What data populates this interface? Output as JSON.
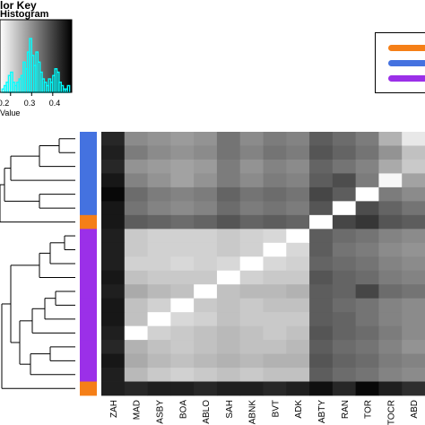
{
  "color_key": {
    "title": "lor Key",
    "subtitle": "Histogram",
    "xlabel": "Value",
    "ticks": [
      "0.2",
      "0.3",
      "0.4"
    ]
  },
  "colors": {
    "orange": "#f57f17",
    "blue": "#4472e0",
    "purple": "#9b30e8",
    "histogram": "#00ffff"
  },
  "chart_data": {
    "type": "heatmap",
    "title": "",
    "columns": [
      "ZAH",
      "MAD",
      "ASBY",
      "BOA",
      "ABLO",
      "SAH",
      "ABNK",
      "BVT",
      "ADK",
      "ABTY",
      "RAN",
      "TOR",
      "TOCR",
      "ABD"
    ],
    "row_groups": [
      "blue",
      "blue",
      "blue",
      "blue",
      "blue",
      "blue",
      "orange",
      "purple",
      "purple",
      "purple",
      "purple",
      "purple",
      "purple",
      "purple",
      "purple",
      "purple",
      "purple",
      "purple",
      "orange"
    ],
    "value_range": [
      0.15,
      0.48
    ],
    "values": [
      [
        0.2,
        0.33,
        0.34,
        0.35,
        0.34,
        0.3,
        0.33,
        0.31,
        0.32,
        0.27,
        0.29,
        0.31,
        0.38,
        0.45
      ],
      [
        0.19,
        0.31,
        0.33,
        0.34,
        0.33,
        0.3,
        0.32,
        0.3,
        0.31,
        0.26,
        0.28,
        0.3,
        0.34,
        0.4
      ],
      [
        0.2,
        0.34,
        0.35,
        0.36,
        0.35,
        0.31,
        0.34,
        0.32,
        0.33,
        0.28,
        0.3,
        0.32,
        0.37,
        0.41
      ],
      [
        0.18,
        0.32,
        0.34,
        0.36,
        0.34,
        0.31,
        0.33,
        0.31,
        0.32,
        0.27,
        0.25,
        0.31,
        0.47,
        0.36
      ],
      [
        0.16,
        0.29,
        0.31,
        0.32,
        0.31,
        0.28,
        0.3,
        0.29,
        0.3,
        0.24,
        0.27,
        0.48,
        0.31,
        0.33
      ],
      [
        0.18,
        0.3,
        0.32,
        0.33,
        0.32,
        0.29,
        0.31,
        0.3,
        0.31,
        0.26,
        0.48,
        0.25,
        0.28,
        0.3
      ],
      [
        0.18,
        0.27,
        0.28,
        0.29,
        0.28,
        0.26,
        0.28,
        0.27,
        0.28,
        0.48,
        0.24,
        0.22,
        0.26,
        0.27
      ],
      [
        0.19,
        0.41,
        0.42,
        0.42,
        0.42,
        0.41,
        0.42,
        0.43,
        0.48,
        0.27,
        0.29,
        0.3,
        0.32,
        0.33
      ],
      [
        0.19,
        0.41,
        0.42,
        0.42,
        0.42,
        0.41,
        0.42,
        0.48,
        0.43,
        0.27,
        0.3,
        0.31,
        0.33,
        0.34
      ],
      [
        0.19,
        0.42,
        0.42,
        0.43,
        0.42,
        0.43,
        0.48,
        0.43,
        0.42,
        0.28,
        0.29,
        0.3,
        0.32,
        0.33
      ],
      [
        0.18,
        0.4,
        0.41,
        0.41,
        0.41,
        0.48,
        0.42,
        0.41,
        0.41,
        0.26,
        0.28,
        0.29,
        0.31,
        0.32
      ],
      [
        0.19,
        0.37,
        0.39,
        0.4,
        0.48,
        0.4,
        0.39,
        0.39,
        0.38,
        0.27,
        0.28,
        0.24,
        0.29,
        0.3
      ],
      [
        0.18,
        0.4,
        0.42,
        0.48,
        0.41,
        0.4,
        0.41,
        0.4,
        0.4,
        0.27,
        0.29,
        0.3,
        0.32,
        0.33
      ],
      [
        0.18,
        0.4,
        0.48,
        0.43,
        0.42,
        0.4,
        0.41,
        0.41,
        0.41,
        0.27,
        0.28,
        0.3,
        0.32,
        0.33
      ],
      [
        0.19,
        0.48,
        0.42,
        0.41,
        0.4,
        0.39,
        0.4,
        0.41,
        0.4,
        0.26,
        0.28,
        0.29,
        0.31,
        0.33
      ],
      [
        0.2,
        0.38,
        0.4,
        0.41,
        0.4,
        0.39,
        0.4,
        0.4,
        0.39,
        0.27,
        0.29,
        0.3,
        0.32,
        0.34
      ],
      [
        0.18,
        0.37,
        0.39,
        0.4,
        0.39,
        0.38,
        0.39,
        0.38,
        0.38,
        0.26,
        0.28,
        0.29,
        0.31,
        0.32
      ],
      [
        0.19,
        0.39,
        0.41,
        0.42,
        0.41,
        0.4,
        0.41,
        0.4,
        0.4,
        0.27,
        0.29,
        0.3,
        0.32,
        0.33
      ],
      [
        0.19,
        0.2,
        0.19,
        0.19,
        0.2,
        0.19,
        0.19,
        0.2,
        0.19,
        0.17,
        0.2,
        0.16,
        0.19,
        0.21
      ]
    ],
    "histogram": {
      "bins": [
        0.16,
        0.17,
        0.18,
        0.19,
        0.2,
        0.21,
        0.22,
        0.23,
        0.24,
        0.25,
        0.26,
        0.27,
        0.28,
        0.29,
        0.3,
        0.31,
        0.32,
        0.33,
        0.34,
        0.35,
        0.36,
        0.37,
        0.38,
        0.39,
        0.4,
        0.41,
        0.42,
        0.43,
        0.44,
        0.45,
        0.46,
        0.47
      ],
      "counts": [
        1,
        2,
        3,
        5,
        6,
        3,
        2,
        3,
        4,
        5,
        9,
        7,
        12,
        16,
        11,
        8,
        12,
        9,
        6,
        4,
        3,
        2,
        4,
        3,
        5,
        7,
        6,
        3,
        2,
        1,
        1,
        2
      ]
    },
    "legend": {
      "placement": "top-right",
      "entries": [
        "orange",
        "blue",
        "purple"
      ]
    }
  }
}
